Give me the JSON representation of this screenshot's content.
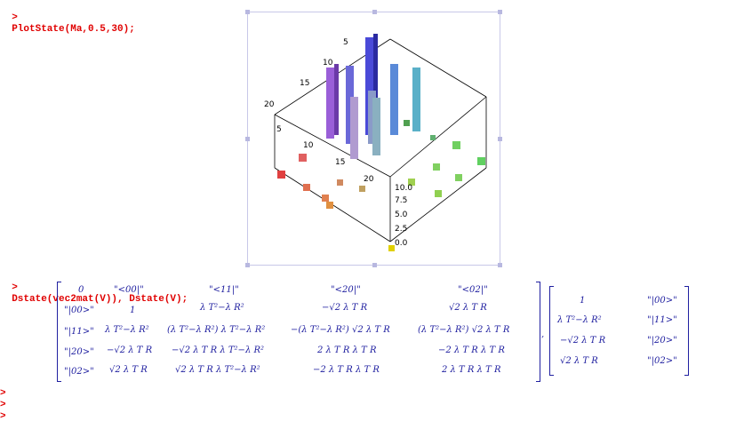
{
  "input1": "PlotState(Ma,0.5,30);",
  "input2": "Dstate(vec2mat(V)), Dstate(V);",
  "prompt": ">",
  "plot": {
    "left_axis_ticks": [
      "5",
      "10",
      "15",
      "20"
    ],
    "front_axis_ticks": [
      "5",
      "10",
      "15",
      "20"
    ],
    "z_axis_ticks": [
      "10.0",
      "7.5",
      "5.0",
      "2.5",
      "0.0"
    ]
  },
  "matrix1": {
    "rows": [
      [
        "0",
        "\"<00|\"",
        "\"<11|\"",
        "\"<20|\"",
        "\"<02|\""
      ],
      [
        "\"|00>\"",
        "1",
        "λ T²−λ R²",
        "−√2 λ T R",
        "√2 λ T R"
      ],
      [
        "\"|11>\"",
        "λ T²−λ R²",
        "(λ T²−λ R²) λ T²−λ R²",
        "−(λ T²−λ R²) √2 λ T R",
        "(λ T²−λ R²) √2 λ T R"
      ],
      [
        "\"|20>\"",
        "−√2 λ T R",
        "−√2 λ T R λ T²−λ R²",
        "2 λ T R λ T R",
        "−2 λ T R λ T R"
      ],
      [
        "\"|02>\"",
        "√2 λ T R",
        "√2 λ T R λ T²−λ R²",
        "−2 λ T R λ T R",
        "2 λ T R λ T R"
      ]
    ]
  },
  "separator": ",",
  "matrix2": {
    "rows": [
      [
        "1",
        "\"|00>\""
      ],
      [
        "λ T²−λ R²",
        "\"|11>\""
      ],
      [
        "−√2 λ T R",
        "\"|20>\""
      ],
      [
        "√2 λ T R",
        "\"|02>\""
      ]
    ]
  }
}
